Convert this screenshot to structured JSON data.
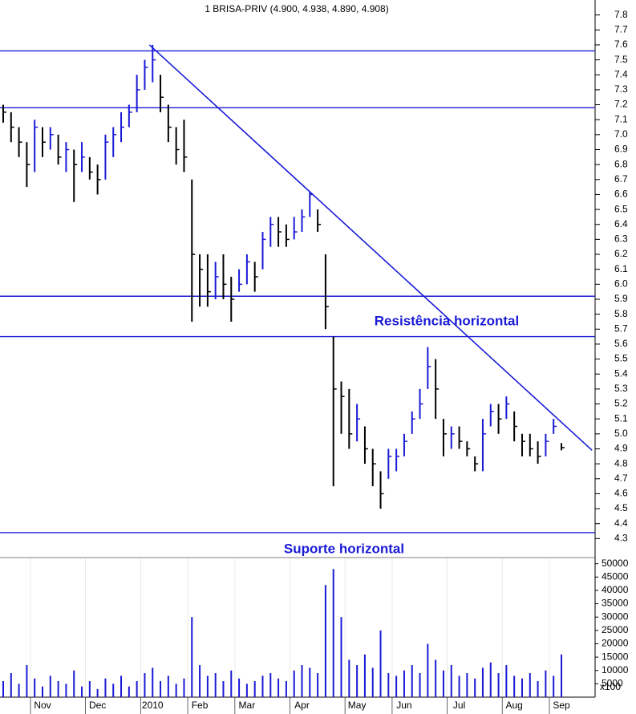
{
  "chart_data": {
    "type": "hlc",
    "title": "1 BRISA-PRIV (4.900, 4.938, 4.890, 4.908)",
    "categories": [
      null,
      null,
      null,
      null,
      null,
      "Nov",
      null,
      null,
      null,
      null,
      null,
      null,
      "Dec",
      null,
      null,
      null,
      null,
      null,
      null,
      "2010",
      null,
      null,
      null,
      null,
      null,
      "Feb",
      null,
      null,
      null,
      null,
      null,
      "Mar",
      null,
      null,
      null,
      null,
      null,
      null,
      "Apr",
      null,
      null,
      null,
      null,
      null,
      null,
      "May",
      null,
      null,
      null,
      null,
      null,
      "Jun",
      null,
      null,
      null,
      null,
      null,
      null,
      "Jul",
      null,
      null,
      null,
      null,
      null,
      null,
      "Aug",
      null,
      null,
      null,
      null,
      null,
      "Sep"
    ],
    "high": [
      7.2,
      7.15,
      7.05,
      6.95,
      7.1,
      7.05,
      7.05,
      7.0,
      6.95,
      6.9,
      6.95,
      6.85,
      6.8,
      7.0,
      7.05,
      7.15,
      7.2,
      7.4,
      7.5,
      7.6,
      7.4,
      7.2,
      7.05,
      7.1,
      6.7,
      6.2,
      6.2,
      6.15,
      6.2,
      6.05,
      6.1,
      6.2,
      6.15,
      6.35,
      6.45,
      6.45,
      6.4,
      6.45,
      6.5,
      6.62,
      6.5,
      6.2,
      5.65,
      5.35,
      5.3,
      5.2,
      5.05,
      4.9,
      4.75,
      4.9,
      4.9,
      5.0,
      5.15,
      5.3,
      5.58,
      5.5,
      5.1,
      5.05,
      5.05,
      4.95,
      4.85,
      5.1,
      5.2,
      5.2,
      5.25,
      5.15,
      5.0,
      5.0,
      4.95,
      5.0,
      5.1,
      4.938
    ],
    "low": [
      7.08,
      6.95,
      6.85,
      6.65,
      6.75,
      6.85,
      6.9,
      6.8,
      6.75,
      6.55,
      6.75,
      6.7,
      6.6,
      6.7,
      6.85,
      6.95,
      7.05,
      7.15,
      7.3,
      7.35,
      7.15,
      6.95,
      6.8,
      6.75,
      5.75,
      5.85,
      5.85,
      5.9,
      5.9,
      5.75,
      5.95,
      6.0,
      5.95,
      6.1,
      6.25,
      6.25,
      6.25,
      6.3,
      6.35,
      6.45,
      6.35,
      5.7,
      4.65,
      5.0,
      4.9,
      4.95,
      4.8,
      4.65,
      4.5,
      4.7,
      4.75,
      4.85,
      5.0,
      5.1,
      5.3,
      5.1,
      4.85,
      4.9,
      4.9,
      4.85,
      4.75,
      4.75,
      5.05,
      5.0,
      5.1,
      4.95,
      4.85,
      4.85,
      4.8,
      4.85,
      5.0,
      4.89
    ],
    "close": [
      7.15,
      7.05,
      6.95,
      6.8,
      7.05,
      6.95,
      7.0,
      6.85,
      6.9,
      6.8,
      6.85,
      6.75,
      6.7,
      6.95,
      7.0,
      7.05,
      7.15,
      7.3,
      7.45,
      7.5,
      7.25,
      7.05,
      6.9,
      6.85,
      6.2,
      6.1,
      5.95,
      6.05,
      6.0,
      5.9,
      6.0,
      6.15,
      6.05,
      6.3,
      6.4,
      6.35,
      6.3,
      6.35,
      6.45,
      6.6,
      6.4,
      5.85,
      5.3,
      5.25,
      5.0,
      5.1,
      4.9,
      4.8,
      4.6,
      4.85,
      4.85,
      4.95,
      5.1,
      5.2,
      5.45,
      5.3,
      5.0,
      5.0,
      4.95,
      4.9,
      4.8,
      5.0,
      5.15,
      5.1,
      5.2,
      5.05,
      4.95,
      4.9,
      4.85,
      4.95,
      5.05,
      4.908
    ],
    "up_color": "#1a1ad6",
    "down_color": "#000000",
    "ylim": [
      4.2,
      7.9
    ],
    "yticks": [
      4.3,
      4.4,
      4.5,
      4.6,
      4.7,
      4.8,
      4.9,
      {
        "value": 5.0,
        "label": "5.0"
      },
      5.1,
      5.2,
      5.3,
      5.4,
      5.5,
      5.6,
      5.7,
      5.8,
      5.9,
      {
        "value": 6.0,
        "label": "6.0"
      },
      6.1,
      6.2,
      6.3,
      6.4,
      6.5,
      6.6,
      6.7,
      6.8,
      6.9,
      {
        "value": 7.0,
        "label": "7.0"
      },
      7.1,
      7.2,
      7.3,
      7.4,
      7.5,
      7.6,
      7.7,
      7.8
    ],
    "hlines": [
      7.56,
      7.18,
      5.92,
      5.65,
      4.34
    ],
    "line_color": "#1a1ad6",
    "trendline": {
      "start": [
        18.6,
        7.6
      ],
      "end": [
        74.9,
        4.89
      ]
    },
    "annotations": [
      "Resistência horizontal",
      "Suporte horizontal"
    ],
    "volume": {
      "values": [
        6000,
        9000,
        5000,
        12000,
        7000,
        4000,
        8000,
        6000,
        5000,
        10000,
        4000,
        6000,
        3000,
        7000,
        5000,
        8000,
        4000,
        6000,
        9000,
        11000,
        6000,
        8000,
        5000,
        7000,
        30000,
        12000,
        8000,
        9000,
        6000,
        10000,
        7000,
        5000,
        6000,
        8000,
        9000,
        7000,
        6000,
        10000,
        12000,
        11000,
        9000,
        42000,
        48000,
        30000,
        14000,
        12000,
        16000,
        11000,
        25000,
        9000,
        8000,
        10000,
        12000,
        9000,
        20000,
        14000,
        10000,
        12000,
        8000,
        9000,
        7000,
        11000,
        13000,
        9000,
        12000,
        8000,
        7000,
        9000,
        6000,
        10000,
        8000,
        16000
      ],
      "color": "#1a1ad6",
      "unit": "x100",
      "ylim": [
        0,
        52000
      ],
      "yticks": [
        5000,
        10000,
        15000,
        20000,
        25000,
        30000,
        35000,
        40000,
        45000,
        50000
      ]
    }
  }
}
